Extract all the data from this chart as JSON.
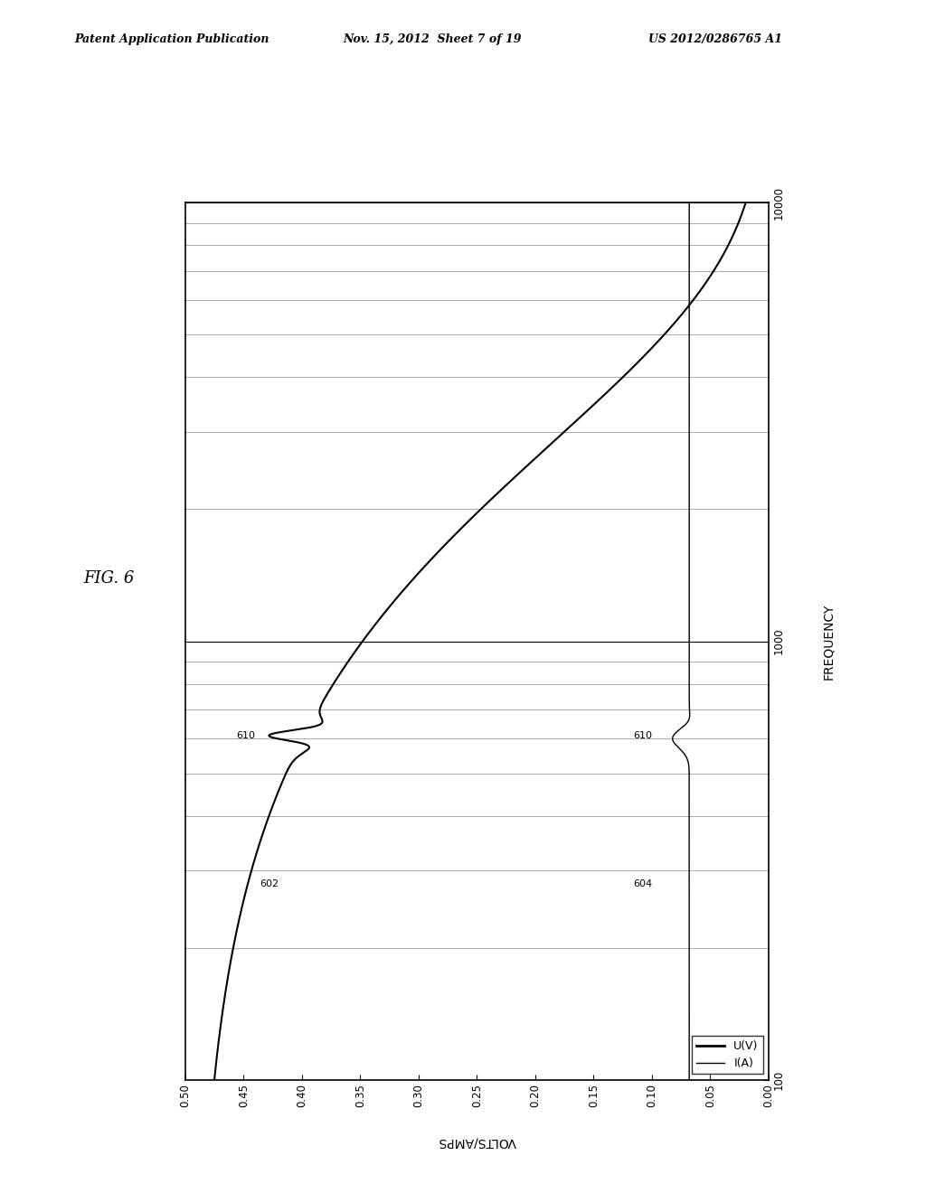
{
  "header_left": "Patent Application Publication",
  "header_mid": "Nov. 15, 2012  Sheet 7 of 19",
  "header_right": "US 2012/0286765 A1",
  "fig_label": "FIG. 6",
  "freq_label": "FREQUENCY",
  "volts_label": "VOLTS/AMPS",
  "legend_labels": [
    "U(V)",
    "I(A)"
  ],
  "annotation_602": "602",
  "annotation_604": "604",
  "annotation_610a": "610",
  "annotation_610b": "610",
  "background_color": "#ffffff",
  "curve_color": "#000000"
}
